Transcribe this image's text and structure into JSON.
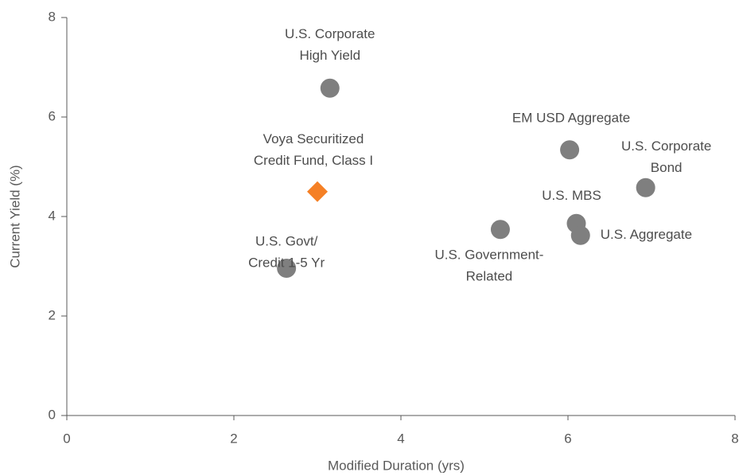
{
  "chart_data": {
    "type": "scatter",
    "x_label": "Modified Duration (yrs)",
    "y_label": "Current Yield (%)",
    "xlim": [
      0,
      8
    ],
    "ylim": [
      0,
      8
    ],
    "xticks": [
      0,
      2,
      4,
      6,
      8
    ],
    "yticks": [
      0,
      2,
      4,
      6,
      8
    ],
    "series": [
      {
        "color": "#7f7f7f",
        "marker": "circle",
        "x": [
          3.15,
          2.63,
          5.19,
          6.02,
          6.93,
          6.1,
          6.15
        ],
        "values": [
          6.58,
          2.96,
          3.74,
          5.34,
          4.58,
          3.86,
          3.62
        ],
        "labels": [
          [
            "U.S. Corporate",
            "High Yield"
          ],
          [
            "U.S. Govt/",
            "Credit 1-5 Yr"
          ],
          [
            "U.S. Government-",
            "Related"
          ],
          [
            "EM USD Aggregate"
          ],
          [
            "U.S. Corporate",
            "Bond"
          ],
          [
            "U.S. MBS"
          ],
          [
            "U.S. Aggregate"
          ]
        ]
      },
      {
        "color": "#f58025",
        "marker": "diamond",
        "x": [
          3.0
        ],
        "values": [
          4.5
        ],
        "labels": [
          [
            "Voya Securitized",
            "Credit Fund, Class I"
          ]
        ]
      }
    ]
  }
}
